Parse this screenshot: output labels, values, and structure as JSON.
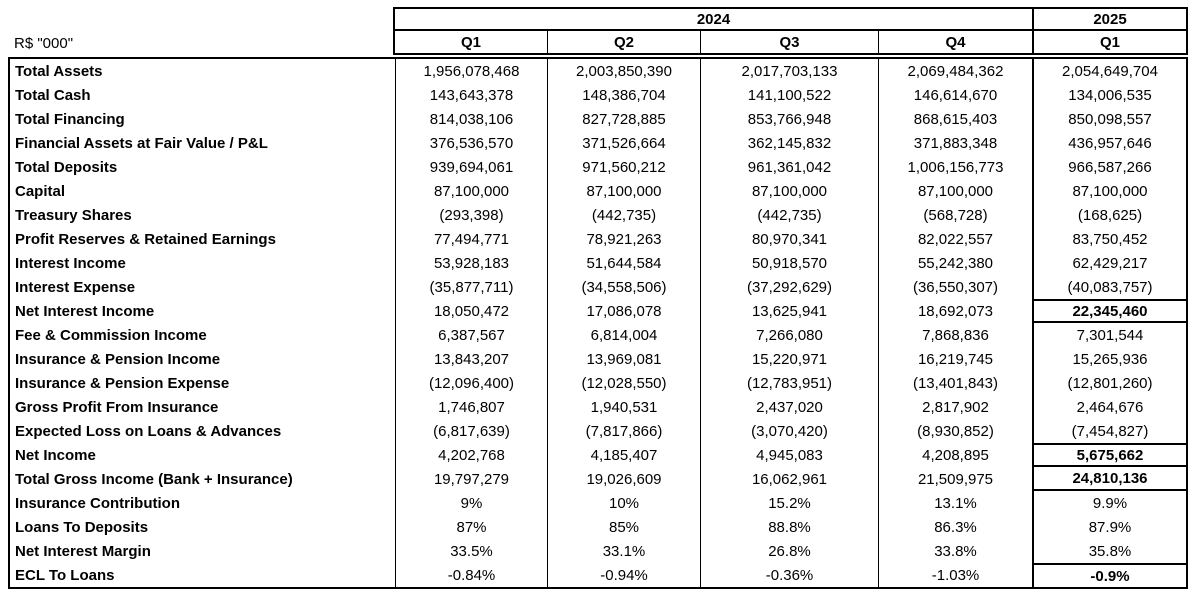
{
  "colors": {
    "text": "#000000",
    "background": "#ffffff",
    "border": "#000000"
  },
  "units_label": "R$ \"000\"",
  "header": {
    "groups": [
      {
        "year": "2024",
        "quarters": [
          "Q1",
          "Q2",
          "Q3",
          "Q4"
        ]
      },
      {
        "year": "2025",
        "quarters": [
          "Q1"
        ]
      }
    ]
  },
  "table": {
    "columns": [
      "2024 Q1",
      "2024 Q2",
      "2024 Q3",
      "2024 Q4",
      "2025 Q1"
    ],
    "rows": [
      {
        "label": "Total Assets",
        "values": [
          "1,956,078,468",
          "2,003,850,390",
          "2,017,703,133",
          "2,069,484,362",
          "2,054,649,704"
        ],
        "highlight_last": false
      },
      {
        "label": "Total Cash",
        "values": [
          "143,643,378",
          "148,386,704",
          "141,100,522",
          "146,614,670",
          "134,006,535"
        ],
        "highlight_last": false
      },
      {
        "label": "Total Financing",
        "values": [
          "814,038,106",
          "827,728,885",
          "853,766,948",
          "868,615,403",
          "850,098,557"
        ],
        "highlight_last": false
      },
      {
        "label": "Financial Assets at Fair Value / P&L",
        "values": [
          "376,536,570",
          "371,526,664",
          "362,145,832",
          "371,883,348",
          "436,957,646"
        ],
        "highlight_last": false
      },
      {
        "label": "Total Deposits",
        "values": [
          "939,694,061",
          "971,560,212",
          "961,361,042",
          "1,006,156,773",
          "966,587,266"
        ],
        "highlight_last": false
      },
      {
        "label": "Capital",
        "values": [
          "87,100,000",
          "87,100,000",
          "87,100,000",
          "87,100,000",
          "87,100,000"
        ],
        "highlight_last": false
      },
      {
        "label": "Treasury Shares",
        "values": [
          "(293,398)",
          "(442,735)",
          "(442,735)",
          "(568,728)",
          "(168,625)"
        ],
        "highlight_last": false
      },
      {
        "label": "Profit Reserves & Retained Earnings",
        "values": [
          "77,494,771",
          "78,921,263",
          "80,970,341",
          "82,022,557",
          "83,750,452"
        ],
        "highlight_last": false
      },
      {
        "label": "Interest Income",
        "values": [
          "53,928,183",
          "51,644,584",
          "50,918,570",
          "55,242,380",
          "62,429,217"
        ],
        "highlight_last": false
      },
      {
        "label": "Interest Expense",
        "values": [
          "(35,877,711)",
          "(34,558,506)",
          "(37,292,629)",
          "(36,550,307)",
          "(40,083,757)"
        ],
        "highlight_last": false
      },
      {
        "label": "Net Interest Income",
        "values": [
          "18,050,472",
          "17,086,078",
          "13,625,941",
          "18,692,073",
          "22,345,460"
        ],
        "highlight_last": true
      },
      {
        "label": "Fee & Commission Income",
        "values": [
          "6,387,567",
          "6,814,004",
          "7,266,080",
          "7,868,836",
          "7,301,544"
        ],
        "highlight_last": false
      },
      {
        "label": "Insurance & Pension Income",
        "values": [
          "13,843,207",
          "13,969,081",
          "15,220,971",
          "16,219,745",
          "15,265,936"
        ],
        "highlight_last": false
      },
      {
        "label": "Insurance & Pension Expense",
        "values": [
          "(12,096,400)",
          "(12,028,550)",
          "(12,783,951)",
          "(13,401,843)",
          "(12,801,260)"
        ],
        "highlight_last": false
      },
      {
        "label": "Gross Profit From Insurance",
        "values": [
          "1,746,807",
          "1,940,531",
          "2,437,020",
          "2,817,902",
          "2,464,676"
        ],
        "highlight_last": false
      },
      {
        "label": "Expected Loss on Loans & Advances",
        "values": [
          "(6,817,639)",
          "(7,817,866)",
          "(3,070,420)",
          "(8,930,852)",
          "(7,454,827)"
        ],
        "highlight_last": false
      },
      {
        "label": "Net Income",
        "values": [
          "4,202,768",
          "4,185,407",
          "4,945,083",
          "4,208,895",
          "5,675,662"
        ],
        "highlight_last": true
      },
      {
        "label": "Total Gross Income (Bank + Insurance)",
        "values": [
          "19,797,279",
          "19,026,609",
          "16,062,961",
          "21,509,975",
          "24,810,136"
        ],
        "highlight_last": true
      },
      {
        "label": "Insurance Contribution",
        "values": [
          "9%",
          "10%",
          "15.2%",
          "13.1%",
          "9.9%"
        ],
        "highlight_last": false
      },
      {
        "label": "Loans To Deposits",
        "values": [
          "87%",
          "85%",
          "88.8%",
          "86.3%",
          "87.9%"
        ],
        "highlight_last": false
      },
      {
        "label": "Net Interest Margin",
        "values": [
          "33.5%",
          "33.1%",
          "26.8%",
          "33.8%",
          "35.8%"
        ],
        "highlight_last": false
      },
      {
        "label": "ECL To Loans",
        "values": [
          "-0.84%",
          "-0.94%",
          "-0.36%",
          "-1.03%",
          "-0.9%"
        ],
        "highlight_last": true
      }
    ]
  }
}
